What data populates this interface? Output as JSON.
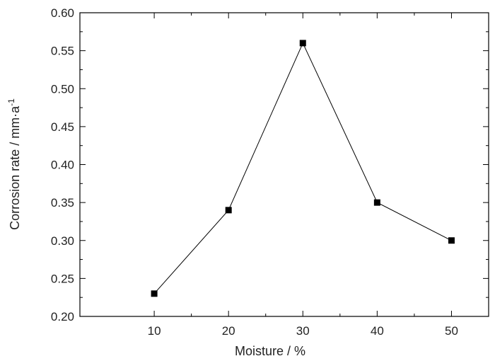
{
  "chart_data": {
    "type": "line",
    "title": "",
    "xlabel": "Moisture / %",
    "ylabel": "Corrosion rate / mm·a",
    "ylabel_superscript": "-1",
    "xlim": [
      0,
      55
    ],
    "ylim": [
      0.2,
      0.6
    ],
    "x_ticks": [
      "10",
      "20",
      "30",
      "40",
      "50"
    ],
    "y_ticks": [
      "0.20",
      "0.25",
      "0.30",
      "0.35",
      "0.40",
      "0.45",
      "0.50",
      "0.55",
      "0.60"
    ],
    "grid": false,
    "legend": false,
    "marker": "square",
    "series": [
      {
        "x": [
          10,
          20,
          30,
          40,
          50
        ],
        "values": [
          0.23,
          0.34,
          0.56,
          0.35,
          0.3
        ],
        "color": "#000000"
      }
    ]
  }
}
